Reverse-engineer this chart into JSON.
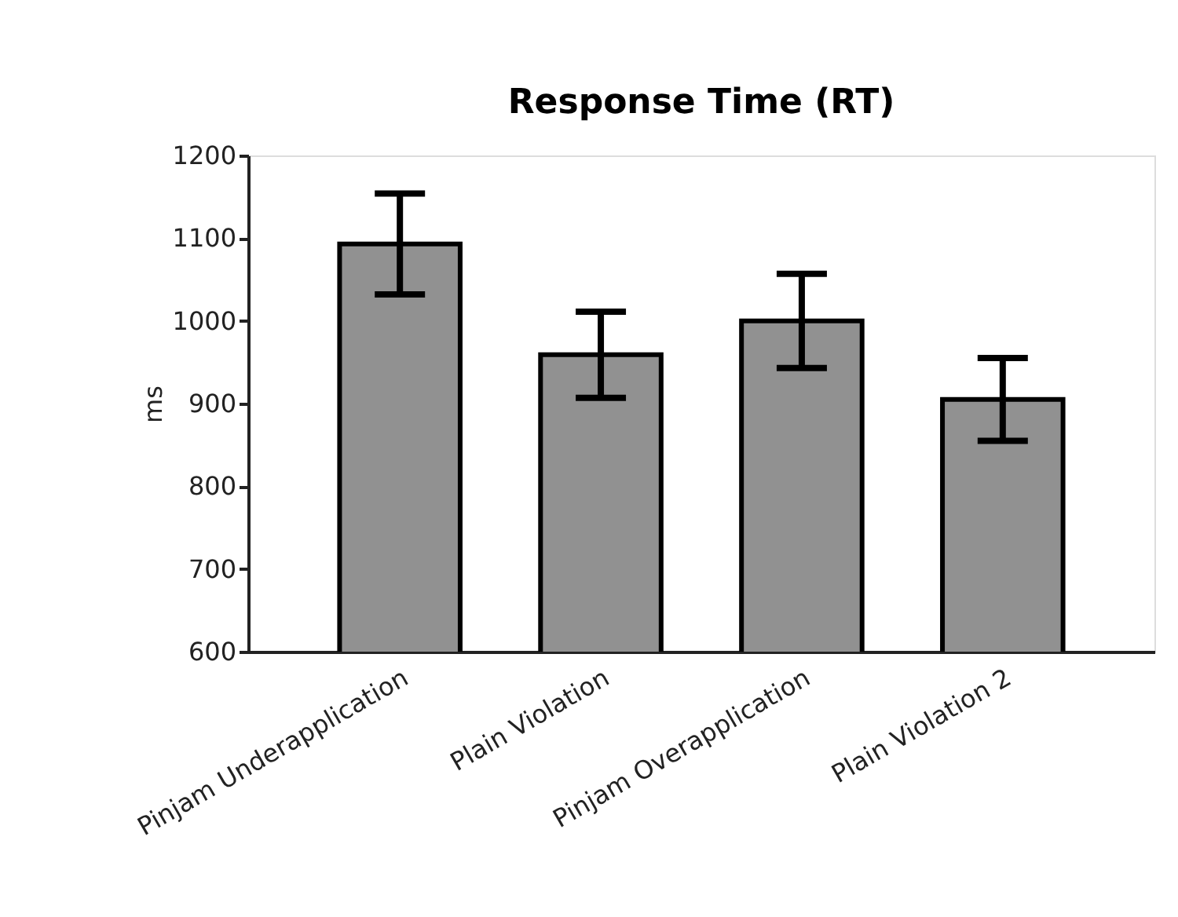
{
  "chart_data": {
    "type": "bar",
    "title": "Response Time (RT)",
    "ylabel": "ms",
    "categories": [
      "Pinjam Underapplication",
      "Plain Violation",
      "Pinjam Overapplication",
      "Plain Violation 2"
    ],
    "values": [
      1093,
      959,
      1000,
      905
    ],
    "errors": [
      61,
      52,
      57,
      50
    ],
    "color": "#919191",
    "ylim": [
      600,
      1200
    ],
    "yticks": [
      600,
      700,
      800,
      900,
      1000,
      1100,
      1200
    ],
    "grid": false
  }
}
